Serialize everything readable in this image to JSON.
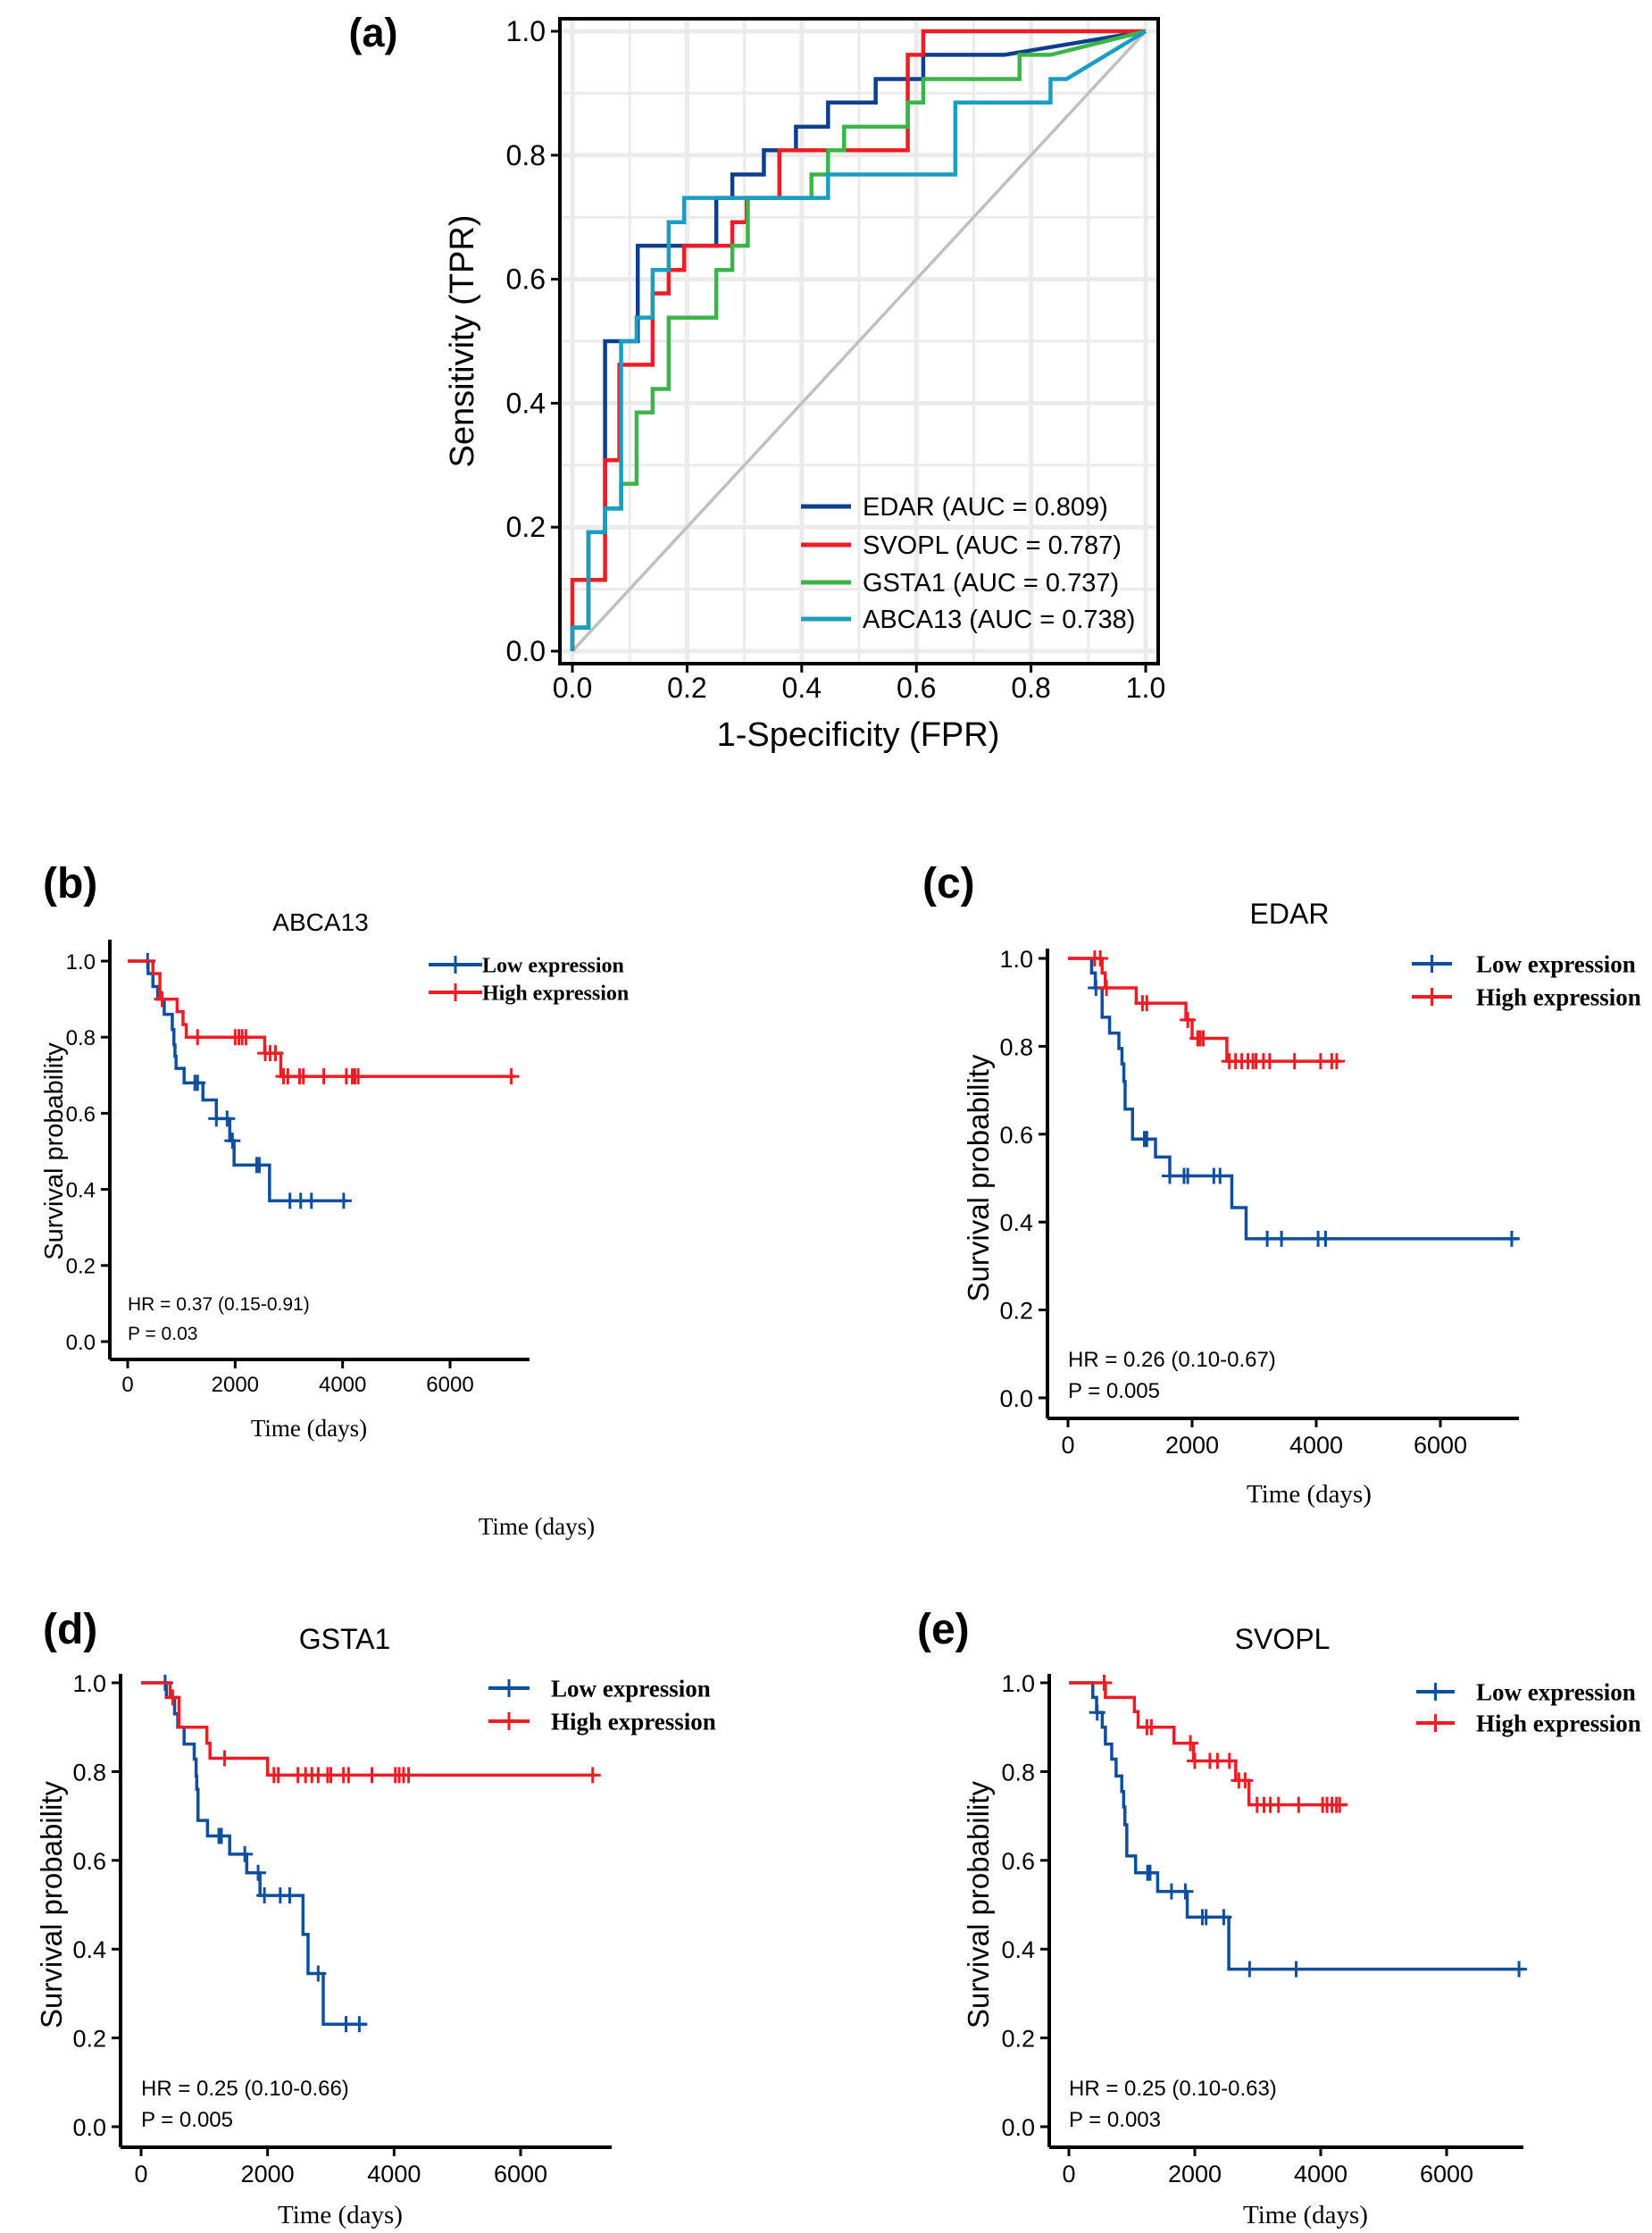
{
  "chart_data": [
    {
      "type": "line",
      "panel_label": "(a)",
      "xlabel": "1-Specificity (FPR)",
      "ylabel": "Sensitivity (TPR)",
      "xlim": [
        0,
        1
      ],
      "ylim": [
        0,
        1
      ],
      "xticks": [
        "0.0",
        "0.2",
        "0.4",
        "0.6",
        "0.8",
        "1.0"
      ],
      "yticks": [
        "0.0",
        "0.2",
        "0.4",
        "0.6",
        "0.8",
        "1.0"
      ],
      "grid": true,
      "legend_position": "bottom-right",
      "reference_line": {
        "color": "#c0c0c0",
        "points": [
          [
            0,
            0
          ],
          [
            1,
            1
          ]
        ]
      },
      "series": [
        {
          "name": "EDAR (AUC = 0.809)",
          "color": "#0d3f8c",
          "points": [
            [
              0,
              0
            ],
            [
              0,
              0.038
            ],
            [
              0.028,
              0.038
            ],
            [
              0.028,
              0.192
            ],
            [
              0.057,
              0.192
            ],
            [
              0.057,
              0.5
            ],
            [
              0.114,
              0.5
            ],
            [
              0.114,
              0.654
            ],
            [
              0.251,
              0.654
            ],
            [
              0.251,
              0.731
            ],
            [
              0.279,
              0.731
            ],
            [
              0.279,
              0.769
            ],
            [
              0.334,
              0.769
            ],
            [
              0.334,
              0.808
            ],
            [
              0.39,
              0.808
            ],
            [
              0.39,
              0.846
            ],
            [
              0.446,
              0.846
            ],
            [
              0.446,
              0.885
            ],
            [
              0.529,
              0.885
            ],
            [
              0.529,
              0.923
            ],
            [
              0.612,
              0.923
            ],
            [
              0.612,
              0.962
            ],
            [
              0.754,
              0.962
            ],
            [
              1,
              1
            ]
          ]
        },
        {
          "name": "SVOPL (AUC = 0.787)",
          "color": "#ee1c24",
          "points": [
            [
              0,
              0
            ],
            [
              0,
              0.115
            ],
            [
              0.057,
              0.115
            ],
            [
              0.057,
              0.308
            ],
            [
              0.082,
              0.308
            ],
            [
              0.082,
              0.462
            ],
            [
              0.14,
              0.462
            ],
            [
              0.14,
              0.577
            ],
            [
              0.168,
              0.577
            ],
            [
              0.168,
              0.615
            ],
            [
              0.195,
              0.615
            ],
            [
              0.195,
              0.654
            ],
            [
              0.279,
              0.654
            ],
            [
              0.279,
              0.692
            ],
            [
              0.304,
              0.692
            ],
            [
              0.304,
              0.731
            ],
            [
              0.361,
              0.731
            ],
            [
              0.361,
              0.808
            ],
            [
              0.585,
              0.808
            ],
            [
              0.585,
              0.962
            ],
            [
              0.612,
              0.962
            ],
            [
              0.612,
              1
            ],
            [
              1,
              1
            ]
          ]
        },
        {
          "name": "GSTA1 (AUC = 0.737)",
          "color": "#3cb44a",
          "points": [
            [
              0,
              0
            ],
            [
              0,
              0.038
            ],
            [
              0.028,
              0.038
            ],
            [
              0.028,
              0.192
            ],
            [
              0.057,
              0.192
            ],
            [
              0.057,
              0.23
            ],
            [
              0.085,
              0.23
            ],
            [
              0.085,
              0.27
            ],
            [
              0.112,
              0.27
            ],
            [
              0.112,
              0.385
            ],
            [
              0.14,
              0.385
            ],
            [
              0.14,
              0.423
            ],
            [
              0.168,
              0.423
            ],
            [
              0.168,
              0.538
            ],
            [
              0.251,
              0.538
            ],
            [
              0.251,
              0.615
            ],
            [
              0.279,
              0.615
            ],
            [
              0.279,
              0.654
            ],
            [
              0.306,
              0.654
            ],
            [
              0.306,
              0.731
            ],
            [
              0.417,
              0.731
            ],
            [
              0.417,
              0.769
            ],
            [
              0.446,
              0.769
            ],
            [
              0.446,
              0.808
            ],
            [
              0.474,
              0.808
            ],
            [
              0.474,
              0.846
            ],
            [
              0.585,
              0.846
            ],
            [
              0.585,
              0.885
            ],
            [
              0.612,
              0.885
            ],
            [
              0.612,
              0.923
            ],
            [
              0.78,
              0.923
            ],
            [
              0.78,
              0.962
            ],
            [
              0.834,
              0.962
            ],
            [
              1,
              1
            ]
          ]
        },
        {
          "name": "ABCA13 (AUC = 0.738)",
          "color": "#1b9cc0",
          "points": [
            [
              0,
              0
            ],
            [
              0,
              0.038
            ],
            [
              0.028,
              0.038
            ],
            [
              0.028,
              0.192
            ],
            [
              0.057,
              0.192
            ],
            [
              0.057,
              0.23
            ],
            [
              0.085,
              0.23
            ],
            [
              0.085,
              0.5
            ],
            [
              0.112,
              0.5
            ],
            [
              0.112,
              0.538
            ],
            [
              0.14,
              0.538
            ],
            [
              0.14,
              0.615
            ],
            [
              0.168,
              0.615
            ],
            [
              0.168,
              0.692
            ],
            [
              0.195,
              0.692
            ],
            [
              0.195,
              0.731
            ],
            [
              0.446,
              0.731
            ],
            [
              0.446,
              0.769
            ],
            [
              0.668,
              0.769
            ],
            [
              0.668,
              0.885
            ],
            [
              0.834,
              0.885
            ],
            [
              0.834,
              0.923
            ],
            [
              0.862,
              0.923
            ],
            [
              1,
              1
            ]
          ]
        }
      ]
    },
    {
      "type": "line",
      "panel_label": "(b)",
      "title": "ABCA13",
      "xlabel": "Time (days)",
      "extra_label": "Time (days)",
      "ylabel": "Survival probability",
      "xticks": [
        "0",
        "2000",
        "4000",
        "6000"
      ],
      "yticks": [
        "0.0",
        "0.2",
        "0.4",
        "0.6",
        "0.8",
        "1.0"
      ],
      "hr": "HR = 0.37 (0.15-0.91)",
      "p": "P = 0.03",
      "series": [
        {
          "name": "Low expression",
          "color": "#0e4e9c",
          "end": 4080,
          "steps": [
            [
              380,
              0.967
            ],
            [
              470,
              0.933
            ],
            [
              560,
              0.9
            ],
            [
              680,
              0.86
            ],
            [
              830,
              0.82
            ],
            [
              860,
              0.78
            ],
            [
              880,
              0.75
            ],
            [
              900,
              0.718
            ],
            [
              1050,
              0.68
            ],
            [
              1400,
              0.635
            ],
            [
              1650,
              0.586
            ],
            [
              1900,
              0.528
            ],
            [
              1980,
              0.464
            ],
            [
              2640,
              0.37
            ]
          ],
          "censor": [
            370,
            1250,
            1300,
            1650,
            1850,
            1950,
            2400,
            2450,
            3020,
            3220,
            3420,
            4020
          ]
        },
        {
          "name": "High expression",
          "color": "#ee1c24",
          "end": 7200,
          "steps": [
            [
              470,
              0.967
            ],
            [
              600,
              0.9
            ],
            [
              920,
              0.867
            ],
            [
              1030,
              0.833
            ],
            [
              1090,
              0.8
            ],
            [
              2550,
              0.758
            ],
            [
              2850,
              0.697
            ]
          ],
          "censor": [
            640,
            1300,
            2000,
            2070,
            2130,
            2200,
            2560,
            2650,
            2750,
            2900,
            2980,
            3200,
            3270,
            3650,
            4070,
            4180,
            4230,
            4290,
            7140
          ]
        }
      ]
    },
    {
      "type": "line",
      "panel_label": "(c)",
      "title": "EDAR",
      "xlabel": "Time (days)",
      "ylabel": "Survival probability",
      "xticks": [
        "0",
        "2000",
        "4000",
        "6000"
      ],
      "yticks": [
        "0.0",
        "0.2",
        "0.4",
        "0.6",
        "0.8",
        "1.0"
      ],
      "hr": "HR = 0.26 (0.10-0.67)",
      "p": "P = 0.005",
      "series": [
        {
          "name": "Low expression",
          "color": "#0e4e9c",
          "end": 7250,
          "steps": [
            [
              380,
              0.967
            ],
            [
              440,
              0.933
            ],
            [
              550,
              0.866
            ],
            [
              670,
              0.83
            ],
            [
              820,
              0.795
            ],
            [
              870,
              0.76
            ],
            [
              900,
              0.72
            ],
            [
              920,
              0.657
            ],
            [
              1040,
              0.589
            ],
            [
              1410,
              0.548
            ],
            [
              1640,
              0.505
            ],
            [
              2640,
              0.433
            ],
            [
              2870,
              0.362
            ]
          ],
          "censor": [
            450,
            1230,
            1270,
            1640,
            1870,
            1930,
            2350,
            2450,
            3210,
            3440,
            4030,
            4150,
            7150
          ]
        },
        {
          "name": "High expression",
          "color": "#ee1c24",
          "end": 4400,
          "steps": [
            [
              550,
              0.967
            ],
            [
              600,
              0.933
            ],
            [
              1100,
              0.898
            ],
            [
              1900,
              0.86
            ],
            [
              2000,
              0.818
            ],
            [
              2560,
              0.766
            ]
          ],
          "censor": [
            430,
            520,
            620,
            1200,
            1270,
            1930,
            2090,
            2130,
            2180,
            2600,
            2700,
            2800,
            2900,
            2980,
            3030,
            3150,
            3250,
            3650,
            4070,
            4250,
            4330
          ]
        }
      ]
    },
    {
      "type": "line",
      "panel_label": "(d)",
      "title": "GSTA1",
      "xlabel": "Time (days)",
      "ylabel": "Survival probability",
      "xticks": [
        "0",
        "2000",
        "4000",
        "6000"
      ],
      "yticks": [
        "0.0",
        "0.2",
        "0.4",
        "0.6",
        "0.8",
        "1.0"
      ],
      "hr": "HR = 0.25 (0.10-0.66)",
      "p": "P = 0.005",
      "series": [
        {
          "name": "Low expression",
          "color": "#0e4e9c",
          "end": 3560,
          "steps": [
            [
              400,
              0.967
            ],
            [
              530,
              0.93
            ],
            [
              580,
              0.9
            ],
            [
              680,
              0.862
            ],
            [
              840,
              0.828
            ],
            [
              870,
              0.79
            ],
            [
              880,
              0.76
            ],
            [
              900,
              0.69
            ],
            [
              1050,
              0.655
            ],
            [
              1400,
              0.614
            ],
            [
              1670,
              0.572
            ],
            [
              1880,
              0.521
            ],
            [
              2560,
              0.433
            ],
            [
              2640,
              0.345
            ],
            [
              2880,
              0.231
            ]
          ],
          "censor": [
            380,
            1230,
            1270,
            1640,
            1850,
            1950,
            2200,
            2350,
            2800,
            3240,
            3450
          ]
        },
        {
          "name": "High expression",
          "color": "#ee1c24",
          "end": 7200,
          "steps": [
            [
              460,
              0.967
            ],
            [
              600,
              0.9
            ],
            [
              1040,
              0.864
            ],
            [
              1090,
              0.83
            ],
            [
              2000,
              0.792
            ]
          ],
          "censor": [
            500,
            1320,
            2100,
            2170,
            2480,
            2600,
            2700,
            2800,
            2950,
            3000,
            3200,
            3280,
            3650,
            4020,
            4080,
            4150,
            4230,
            7140
          ]
        }
      ]
    },
    {
      "type": "line",
      "panel_label": "(e)",
      "title": "SVOPL",
      "xlabel": "Time (days)",
      "ylabel": "Survival probability",
      "xticks": [
        "0",
        "2000",
        "4000",
        "6000"
      ],
      "yticks": [
        "0.0",
        "0.2",
        "0.4",
        "0.6",
        "0.8",
        "1.0"
      ],
      "hr": "HR = 0.25 (0.10-0.63)",
      "p": "P = 0.003",
      "series": [
        {
          "name": "Low expression",
          "color": "#0e4e9c",
          "end": 7220,
          "steps": [
            [
              380,
              0.967
            ],
            [
              440,
              0.933
            ],
            [
              530,
              0.9
            ],
            [
              580,
              0.862
            ],
            [
              680,
              0.828
            ],
            [
              750,
              0.79
            ],
            [
              840,
              0.755
            ],
            [
              870,
              0.72
            ],
            [
              890,
              0.68
            ],
            [
              920,
              0.61
            ],
            [
              1060,
              0.572
            ],
            [
              1410,
              0.53
            ],
            [
              1880,
              0.472
            ],
            [
              2540,
              0.355
            ]
          ],
          "censor": [
            450,
            1250,
            1290,
            1630,
            1850,
            2120,
            2180,
            2460,
            2870,
            3610,
            7150
          ]
        },
        {
          "name": "High expression",
          "color": "#ee1c24",
          "end": 4400,
          "steps": [
            [
              580,
              0.967
            ],
            [
              1040,
              0.935
            ],
            [
              1100,
              0.9
            ],
            [
              1670,
              0.864
            ],
            [
              1980,
              0.824
            ],
            [
              2650,
              0.78
            ],
            [
              2860,
              0.725
            ]
          ],
          "censor": [
            560,
            1240,
            1310,
            1930,
            2000,
            2240,
            2360,
            2550,
            2700,
            2800,
            2990,
            3100,
            3200,
            3330,
            3650,
            4030,
            4100,
            4180,
            4250,
            4300
          ]
        }
      ]
    }
  ]
}
